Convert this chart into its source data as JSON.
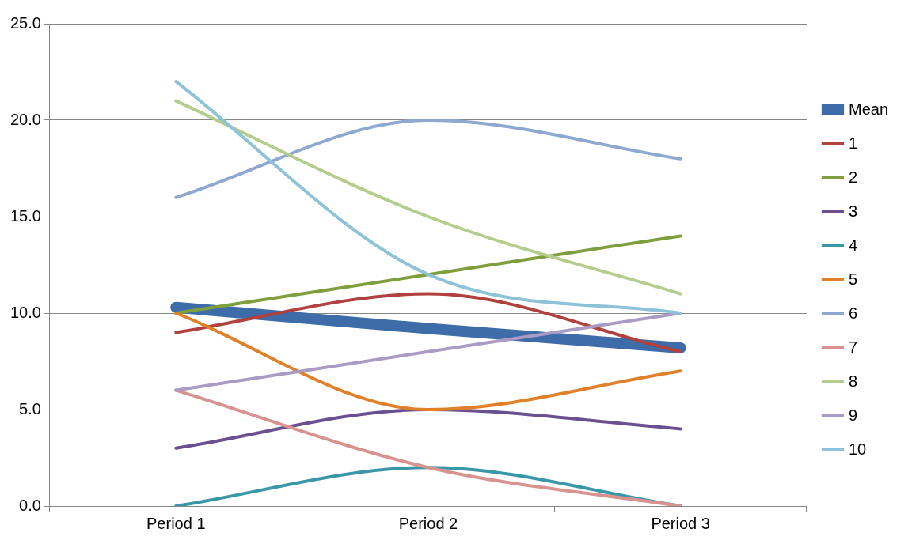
{
  "chart_data": {
    "type": "line",
    "categories": [
      "Period 1",
      "Period 2",
      "Period 3"
    ],
    "series": [
      {
        "name": "Mean",
        "color": "#3e6ca8",
        "values": [
          10.3,
          9.2,
          8.2
        ]
      },
      {
        "name": "1",
        "color": "#b0413e",
        "values": [
          9,
          11,
          8
        ]
      },
      {
        "name": "2",
        "color": "#7f9f3f",
        "values": [
          10,
          12,
          14
        ]
      },
      {
        "name": "3",
        "color": "#6a5090",
        "values": [
          3,
          5,
          4
        ]
      },
      {
        "name": "4",
        "color": "#3a97a8",
        "values": [
          0,
          2,
          0
        ]
      },
      {
        "name": "5",
        "color": "#e08028",
        "values": [
          10,
          5,
          7
        ]
      },
      {
        "name": "6",
        "color": "#8fa8d0",
        "values": [
          16,
          20,
          18
        ]
      },
      {
        "name": "7",
        "color": "#d89290",
        "values": [
          6,
          2,
          0
        ]
      },
      {
        "name": "8",
        "color": "#b5cd8c",
        "values": [
          21,
          15,
          11
        ]
      },
      {
        "name": "9",
        "color": "#a99bc4",
        "values": [
          6,
          8,
          10
        ]
      },
      {
        "name": "10",
        "color": "#8dc3d8",
        "values": [
          22,
          12,
          10
        ]
      }
    ],
    "ylim": [
      0,
      25
    ],
    "yticks": [
      {
        "value": 0,
        "label": "0.0"
      },
      {
        "value": 5,
        "label": "5.0"
      },
      {
        "value": 10,
        "label": "10.0"
      },
      {
        "value": 15,
        "label": "15.0"
      },
      {
        "value": 20,
        "label": "20.0"
      },
      {
        "value": 25,
        "label": "25.0"
      }
    ],
    "grid": "y",
    "legend": "right",
    "marker": "none",
    "line_style": "solid"
  }
}
